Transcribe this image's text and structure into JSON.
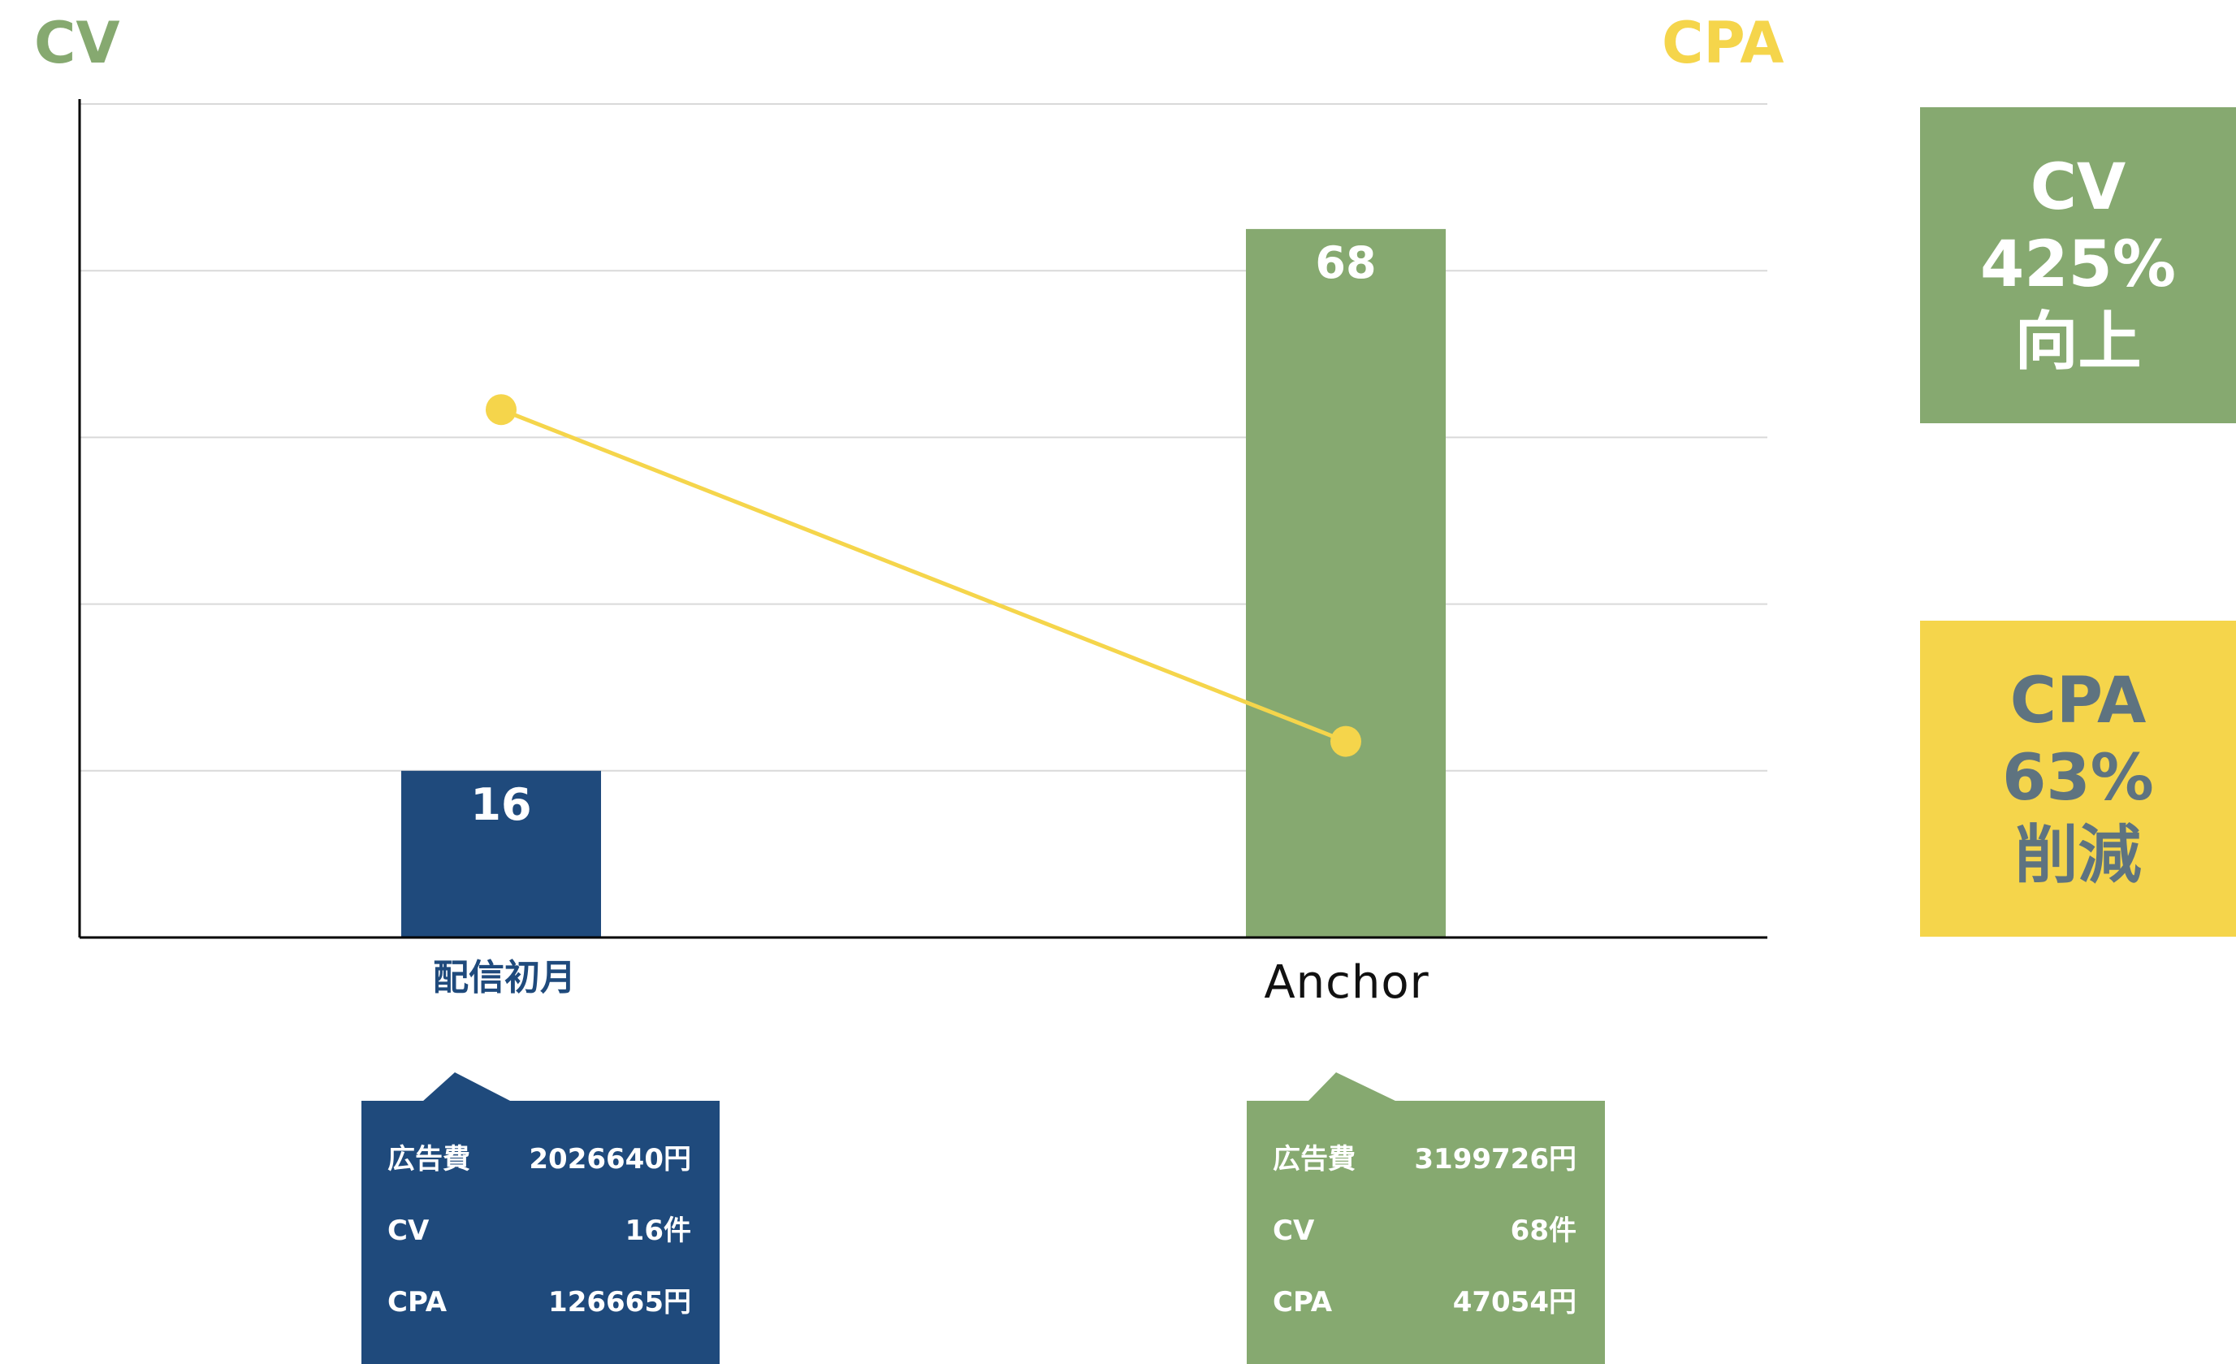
{
  "chart_data": {
    "type": "bar",
    "categories": [
      "配信初月",
      "Anchor"
    ],
    "series": [
      {
        "name": "CV",
        "type": "bar",
        "axis": "left",
        "values": [
          16,
          68
        ],
        "colors": [
          "#1f4a7c",
          "#86a970"
        ],
        "data_labels": [
          "16",
          "68"
        ]
      },
      {
        "name": "CPA",
        "type": "line",
        "axis": "right",
        "values": [
          126665,
          47054
        ],
        "color": "#f5d54b"
      }
    ],
    "left_axis_title": "CV",
    "right_axis_title": "CPA",
    "grid": true,
    "ylim_left": [
      0,
      80
    ],
    "ylim_right": [
      0,
      200000
    ]
  },
  "callouts": [
    {
      "color": "#1f4a7c",
      "rows": [
        {
          "label": "広告費",
          "value": "2026640円"
        },
        {
          "label": "CV",
          "value": "16件"
        },
        {
          "label": "CPA",
          "value": "126665円"
        }
      ]
    },
    {
      "color": "#86a970",
      "rows": [
        {
          "label": "広告費",
          "value": "3199726円"
        },
        {
          "label": "CV",
          "value": "68件"
        },
        {
          "label": "CPA",
          "value": "47054円"
        }
      ]
    }
  ],
  "badges": {
    "cv": {
      "line1": "CV",
      "line2": "425%",
      "line3": "向上",
      "bg": "#86a970",
      "fg": "#ffffff"
    },
    "cpa": {
      "line1": "CPA",
      "line2": "63%",
      "line3": "削減",
      "bg": "#f5d54b",
      "fg": "#5e7380"
    }
  }
}
